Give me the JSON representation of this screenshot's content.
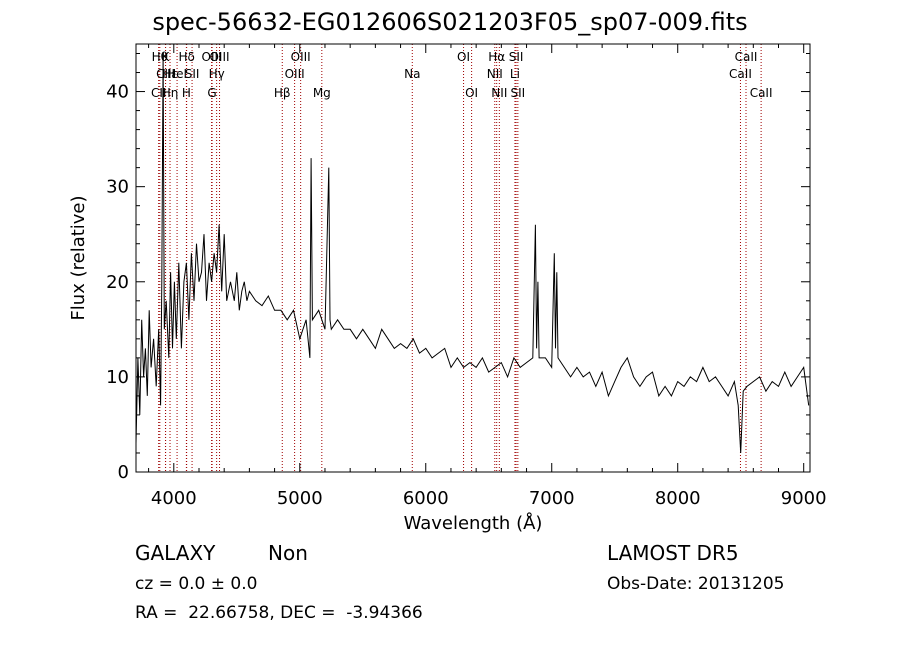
{
  "chart_data": {
    "type": "line",
    "title": "spec-56632-EG012606S021203F05_sp07-009.fits",
    "xlabel": "Wavelength (Å)",
    "ylabel": "Flux (relative)",
    "xlim": [
      3700,
      9050
    ],
    "ylim": [
      0,
      45
    ],
    "xticks": [
      4000,
      5000,
      6000,
      7000,
      8000,
      9000
    ],
    "yticks": [
      0,
      10,
      20,
      30,
      40
    ],
    "xtick_labels": [
      "4000",
      "5000",
      "6000",
      "7000",
      "8000",
      "9000"
    ],
    "ytick_labels": [
      "0",
      "10",
      "20",
      "30",
      "40"
    ],
    "line_color": "#000000",
    "marker_color": "#a00000",
    "series": [
      {
        "x": [
          3700,
          3715,
          3730,
          3745,
          3760,
          3775,
          3790,
          3805,
          3820,
          3840,
          3860,
          3880,
          3895,
          3905,
          3915,
          3925,
          3940,
          3960,
          3975,
          3990,
          4005,
          4020,
          4040,
          4060,
          4080,
          4100,
          4120,
          4140,
          4160,
          4180,
          4200,
          4220,
          4240,
          4260,
          4280,
          4300,
          4320,
          4340,
          4360,
          4380,
          4400,
          4420,
          4450,
          4480,
          4500,
          4520,
          4540,
          4560,
          4580,
          4600,
          4650,
          4700,
          4750,
          4800,
          4850,
          4900,
          4950,
          5000,
          5050,
          5080,
          5090,
          5100,
          5150,
          5200,
          5230,
          5240,
          5250,
          5300,
          5350,
          5400,
          5450,
          5500,
          5550,
          5600,
          5650,
          5700,
          5750,
          5800,
          5850,
          5900,
          5950,
          6000,
          6050,
          6100,
          6150,
          6200,
          6250,
          6300,
          6350,
          6400,
          6450,
          6500,
          6550,
          6600,
          6650,
          6700,
          6750,
          6800,
          6850,
          6870,
          6880,
          6890,
          6900,
          6950,
          7000,
          7020,
          7030,
          7040,
          7050,
          7100,
          7150,
          7200,
          7250,
          7300,
          7350,
          7400,
          7450,
          7500,
          7550,
          7600,
          7650,
          7700,
          7750,
          7800,
          7850,
          7900,
          7950,
          8000,
          8050,
          8100,
          8150,
          8200,
          8250,
          8300,
          8350,
          8400,
          8450,
          8480,
          8500,
          8520,
          8550,
          8600,
          8650,
          8700,
          8750,
          8800,
          8850,
          8900,
          8950,
          9000,
          9040
        ],
        "y": [
          3,
          12,
          6,
          16,
          10,
          13,
          8,
          17,
          11,
          14,
          9,
          15,
          7,
          20,
          44,
          15,
          18,
          12,
          21,
          13,
          20,
          14,
          22,
          13,
          20,
          22,
          16,
          23,
          18,
          24,
          20,
          21,
          25,
          18,
          22,
          20,
          23,
          21,
          26,
          19,
          25,
          18,
          20,
          18,
          21,
          17,
          19,
          20,
          18,
          19,
          18,
          17.5,
          18.5,
          17,
          17,
          16,
          17,
          14,
          16,
          12,
          33,
          16,
          17,
          15,
          32,
          16,
          15,
          16,
          15,
          15,
          14,
          15,
          14,
          13,
          15,
          14,
          13,
          13.5,
          13,
          14,
          12.5,
          13,
          12,
          12.5,
          13,
          11,
          12,
          11,
          11.5,
          11,
          12,
          10.5,
          11,
          11.5,
          10,
          12,
          11,
          11.5,
          12,
          26,
          13,
          20,
          12,
          12,
          11,
          23,
          13,
          21,
          12,
          11,
          10,
          11,
          10,
          10.5,
          9,
          10.5,
          8,
          9.5,
          11,
          12,
          10,
          9,
          10,
          10.5,
          8,
          9,
          8,
          9.5,
          9,
          10,
          9.5,
          11,
          9.5,
          10,
          9,
          8,
          9.5,
          7,
          2,
          8.5,
          9,
          9.5,
          10,
          8.5,
          9.5,
          9,
          10.5,
          9,
          10,
          11,
          7
        ]
      }
    ],
    "markers": [
      {
        "label": "CII",
        "x": 3880,
        "row": 3
      },
      {
        "label": "Hθ",
        "x": 3889,
        "row": 1
      },
      {
        "label": "CIII",
        "x": 3935,
        "row": 2
      },
      {
        "label": "K",
        "x": 3934,
        "row": 1
      },
      {
        "label": "Hε",
        "x": 3970,
        "row": 2
      },
      {
        "label": "Hη",
        "x": 3970,
        "row": 3
      },
      {
        "label": "HeI",
        "x": 4026,
        "row": 2
      },
      {
        "label": "H",
        "x": 4100,
        "row": 3
      },
      {
        "label": "Hδ",
        "x": 4102,
        "row": 1
      },
      {
        "label": "SII",
        "x": 4145,
        "row": 2
      },
      {
        "label": "OIII",
        "x": 4300,
        "row": 1
      },
      {
        "label": "Hγ",
        "x": 4340,
        "row": 2
      },
      {
        "label": "G",
        "x": 4304,
        "row": 3
      },
      {
        "label": "OIII",
        "x": 4363,
        "row": 1
      },
      {
        "label": "Hβ",
        "x": 4861,
        "row": 3
      },
      {
        "label": "OIII",
        "x": 4959,
        "row": 2
      },
      {
        "label": "OIII",
        "x": 5007,
        "row": 1
      },
      {
        "label": "Mg",
        "x": 5175,
        "row": 3
      },
      {
        "label": "Na",
        "x": 5893,
        "row": 2
      },
      {
        "label": "OI",
        "x": 6300,
        "row": 1
      },
      {
        "label": "OI",
        "x": 6364,
        "row": 3
      },
      {
        "label": "Hα",
        "x": 6563,
        "row": 1
      },
      {
        "label": "NII",
        "x": 6548,
        "row": 2
      },
      {
        "label": "NII",
        "x": 6584,
        "row": 3
      },
      {
        "label": "SII",
        "x": 6717,
        "row": 1
      },
      {
        "label": "Li",
        "x": 6708,
        "row": 2
      },
      {
        "label": "SII",
        "x": 6731,
        "row": 3
      },
      {
        "label": "CaII",
        "x": 8542,
        "row": 1
      },
      {
        "label": "CaII",
        "x": 8498,
        "row": 2
      },
      {
        "label": "CaII",
        "x": 8662,
        "row": 3
      }
    ]
  },
  "footer": {
    "class_label": "GALAXY",
    "subclass": "Non",
    "survey": "LAMOST DR5",
    "cz": "cz = 0.0 ± 0.0",
    "obs_date": "Obs-Date: 20131205",
    "radec": "RA =  22.66758, DEC =  -3.94366"
  }
}
